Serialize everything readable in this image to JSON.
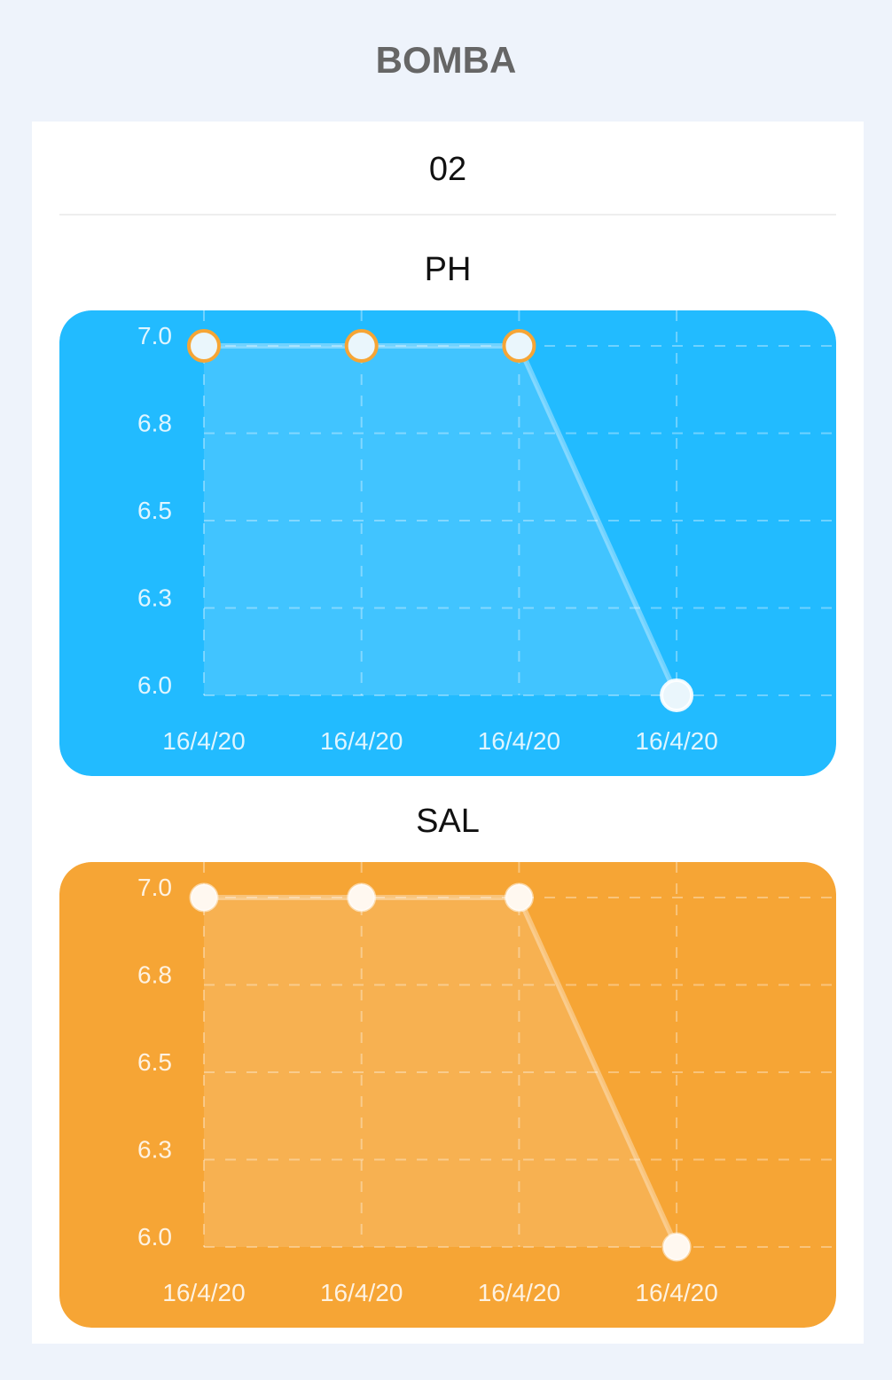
{
  "header": {
    "title": "BOMBA"
  },
  "card": {
    "device_id": "02",
    "sections": [
      {
        "title": "PH"
      },
      {
        "title": "SAL"
      }
    ]
  },
  "colors": {
    "ph_panel": "#22bbff",
    "sal_panel": "#f6a535",
    "marker_stroke": "#f6a535"
  },
  "chart_data": [
    {
      "type": "area",
      "title": "PH",
      "categories": [
        "16/4/20",
        "16/4/20",
        "16/4/20",
        "16/4/20"
      ],
      "values": [
        7.0,
        7.0,
        7.0,
        6.0
      ],
      "yticks": [
        "7.0",
        "6.8",
        "6.5",
        "6.3",
        "6.0"
      ],
      "ylim": [
        6.0,
        7.0
      ],
      "grid": true
    },
    {
      "type": "area",
      "title": "SAL",
      "categories": [
        "16/4/20",
        "16/4/20",
        "16/4/20",
        "16/4/20"
      ],
      "values": [
        7.0,
        7.0,
        7.0,
        6.0
      ],
      "yticks": [
        "7.0",
        "6.8",
        "6.5",
        "6.3",
        "6.0"
      ],
      "ylim": [
        6.0,
        7.0
      ],
      "grid": true
    }
  ]
}
